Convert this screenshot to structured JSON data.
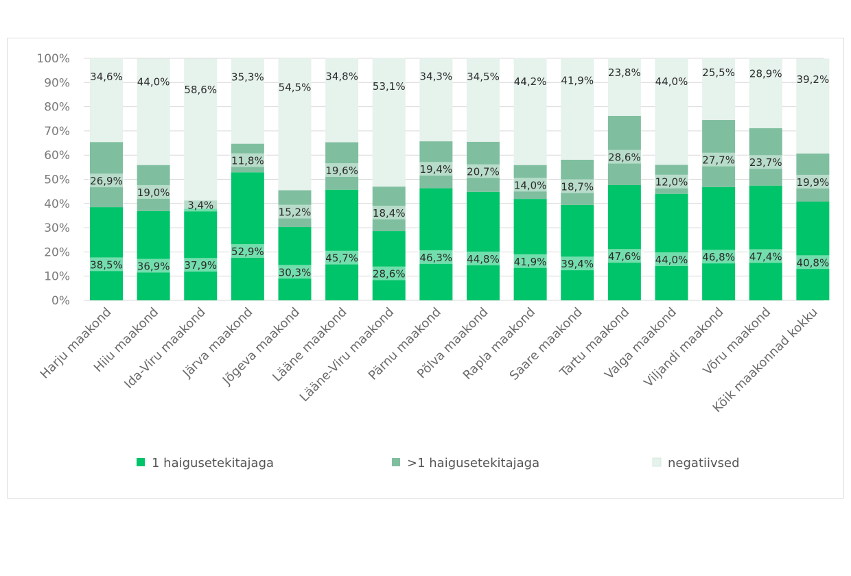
{
  "chart_data": {
    "type": "bar",
    "stacked": true,
    "title": "",
    "xlabel": "",
    "ylabel": "",
    "ylim": [
      0,
      100
    ],
    "y_ticks": [
      "0%",
      "10%",
      "20%",
      "30%",
      "40%",
      "50%",
      "60%",
      "70%",
      "80%",
      "90%",
      "100%"
    ],
    "grid": true,
    "legend_position": "bottom",
    "categories": [
      "Harju maakond",
      "Hiiu maakond",
      "Ida-Viru maakond",
      "Järva maakond",
      "Jõgeva maakond",
      "Lääne maakond",
      "Lääne-Viru maakond",
      "Pärnu maakond",
      "Põlva maakond",
      "Rapla maakond",
      "Saare maakond",
      "Tartu maakond",
      "Valga maakond",
      "Viljandi maakond",
      "Võru maakond",
      "Kõik maakonnad kokku"
    ],
    "series": [
      {
        "name": "1 haigusetekitajaga",
        "color": "#00c46a",
        "values": [
          38.5,
          36.9,
          37.9,
          52.9,
          30.3,
          45.7,
          28.6,
          46.3,
          44.8,
          41.9,
          39.4,
          47.6,
          44.0,
          46.8,
          47.4,
          40.8
        ],
        "labels": [
          "38,5%",
          "36,9%",
          "37,9%",
          "52,9%",
          "30,3%",
          "45,7%",
          "28,6%",
          "46,3%",
          "44,8%",
          "41,9%",
          "39,4%",
          "47,6%",
          "44,0%",
          "46,8%",
          "47,4%",
          "40,8%"
        ]
      },
      {
        "name": ">1 haigusetekitajaga",
        "color": "#7fbf9f",
        "values": [
          26.9,
          19.0,
          3.4,
          11.8,
          15.2,
          19.6,
          18.4,
          19.4,
          20.7,
          14.0,
          18.7,
          28.6,
          12.0,
          27.7,
          23.7,
          19.9
        ],
        "labels": [
          "26,9%",
          "19,0%",
          "3,4%",
          "11,8%",
          "15,2%",
          "19,6%",
          "18,4%",
          "19,4%",
          "20,7%",
          "14,0%",
          "18,7%",
          "28,6%",
          "12,0%",
          "27,7%",
          "23,7%",
          "19,9%"
        ]
      },
      {
        "name": "negatiivsed",
        "color": "#e6f2ec",
        "values": [
          34.6,
          44.0,
          58.6,
          35.3,
          54.5,
          34.8,
          53.1,
          34.3,
          34.5,
          44.2,
          41.9,
          23.8,
          44.0,
          25.5,
          28.9,
          39.2
        ],
        "labels": [
          "34,6%",
          "44,0%",
          "58,6%",
          "35,3%",
          "54,5%",
          "34,8%",
          "53,1%",
          "34,3%",
          "34,5%",
          "44,2%",
          "41,9%",
          "23,8%",
          "44,0%",
          "25,5%",
          "28,9%",
          "39,2%"
        ]
      }
    ]
  }
}
